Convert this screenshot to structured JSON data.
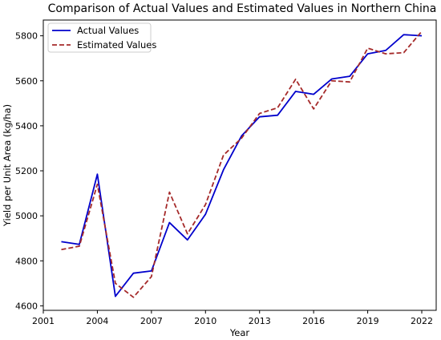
{
  "chart_data": {
    "type": "line",
    "title": "Comparison of Actual Values and Estimated Values in Northern China",
    "xlabel": "Year",
    "ylabel": "Yield per Unit Area (kg/ha)",
    "xlim": [
      2001,
      2022.8
    ],
    "ylim": [
      4580,
      5870
    ],
    "x_ticks": [
      2001,
      2004,
      2007,
      2010,
      2013,
      2016,
      2019,
      2022
    ],
    "y_ticks": [
      4600,
      4800,
      5000,
      5200,
      5400,
      5600,
      5800
    ],
    "grid": false,
    "legend_position": "upper-left",
    "x": [
      2002,
      2003,
      2004,
      2005,
      2006,
      2007,
      2008,
      2009,
      2010,
      2011,
      2012,
      2013,
      2014,
      2015,
      2016,
      2017,
      2018,
      2019,
      2020,
      2021,
      2022
    ],
    "series": [
      {
        "name": "Actual Values",
        "color": "#0000cc",
        "style": "solid",
        "values": [
          4885,
          4873,
          5185,
          4642,
          4745,
          4755,
          4970,
          4893,
          5007,
          5205,
          5355,
          5440,
          5447,
          5553,
          5540,
          5608,
          5620,
          5720,
          5735,
          5805,
          5800
        ]
      },
      {
        "name": "Estimated Values",
        "color": "#a52a2a",
        "style": "dashed",
        "values": [
          4850,
          4865,
          5140,
          4700,
          4638,
          4730,
          5105,
          4920,
          5050,
          5270,
          5345,
          5455,
          5480,
          5607,
          5475,
          5600,
          5595,
          5745,
          5720,
          5725,
          5820
        ]
      }
    ]
  }
}
